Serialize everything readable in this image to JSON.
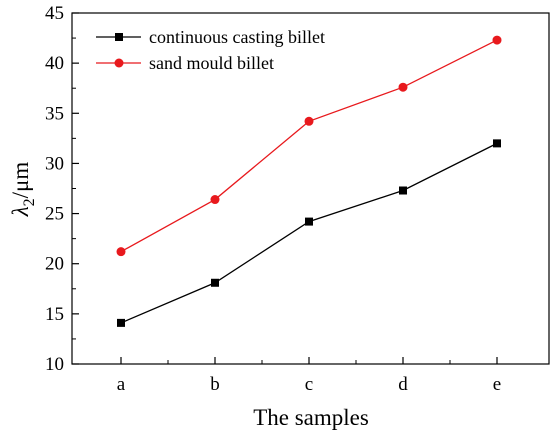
{
  "chart_data": {
    "type": "line",
    "categories": [
      "a",
      "b",
      "c",
      "d",
      "e"
    ],
    "series": [
      {
        "name": "continuous casting billet",
        "values": [
          14.1,
          18.1,
          24.2,
          27.3,
          32.0
        ],
        "color": "#000000",
        "marker": "square"
      },
      {
        "name": "sand mould billet",
        "values": [
          21.2,
          26.4,
          34.2,
          37.6,
          42.3
        ],
        "color": "#e8191d",
        "marker": "circle"
      }
    ],
    "xlabel": "The samples",
    "ylabel": {
      "symbol": "λ",
      "subscript": "2",
      "unit": "/μm"
    },
    "ylim": [
      10,
      45
    ],
    "yticks": [
      "10",
      "15",
      "20",
      "25",
      "30",
      "35",
      "40",
      "45"
    ],
    "grid": false,
    "legend": "top-left"
  }
}
